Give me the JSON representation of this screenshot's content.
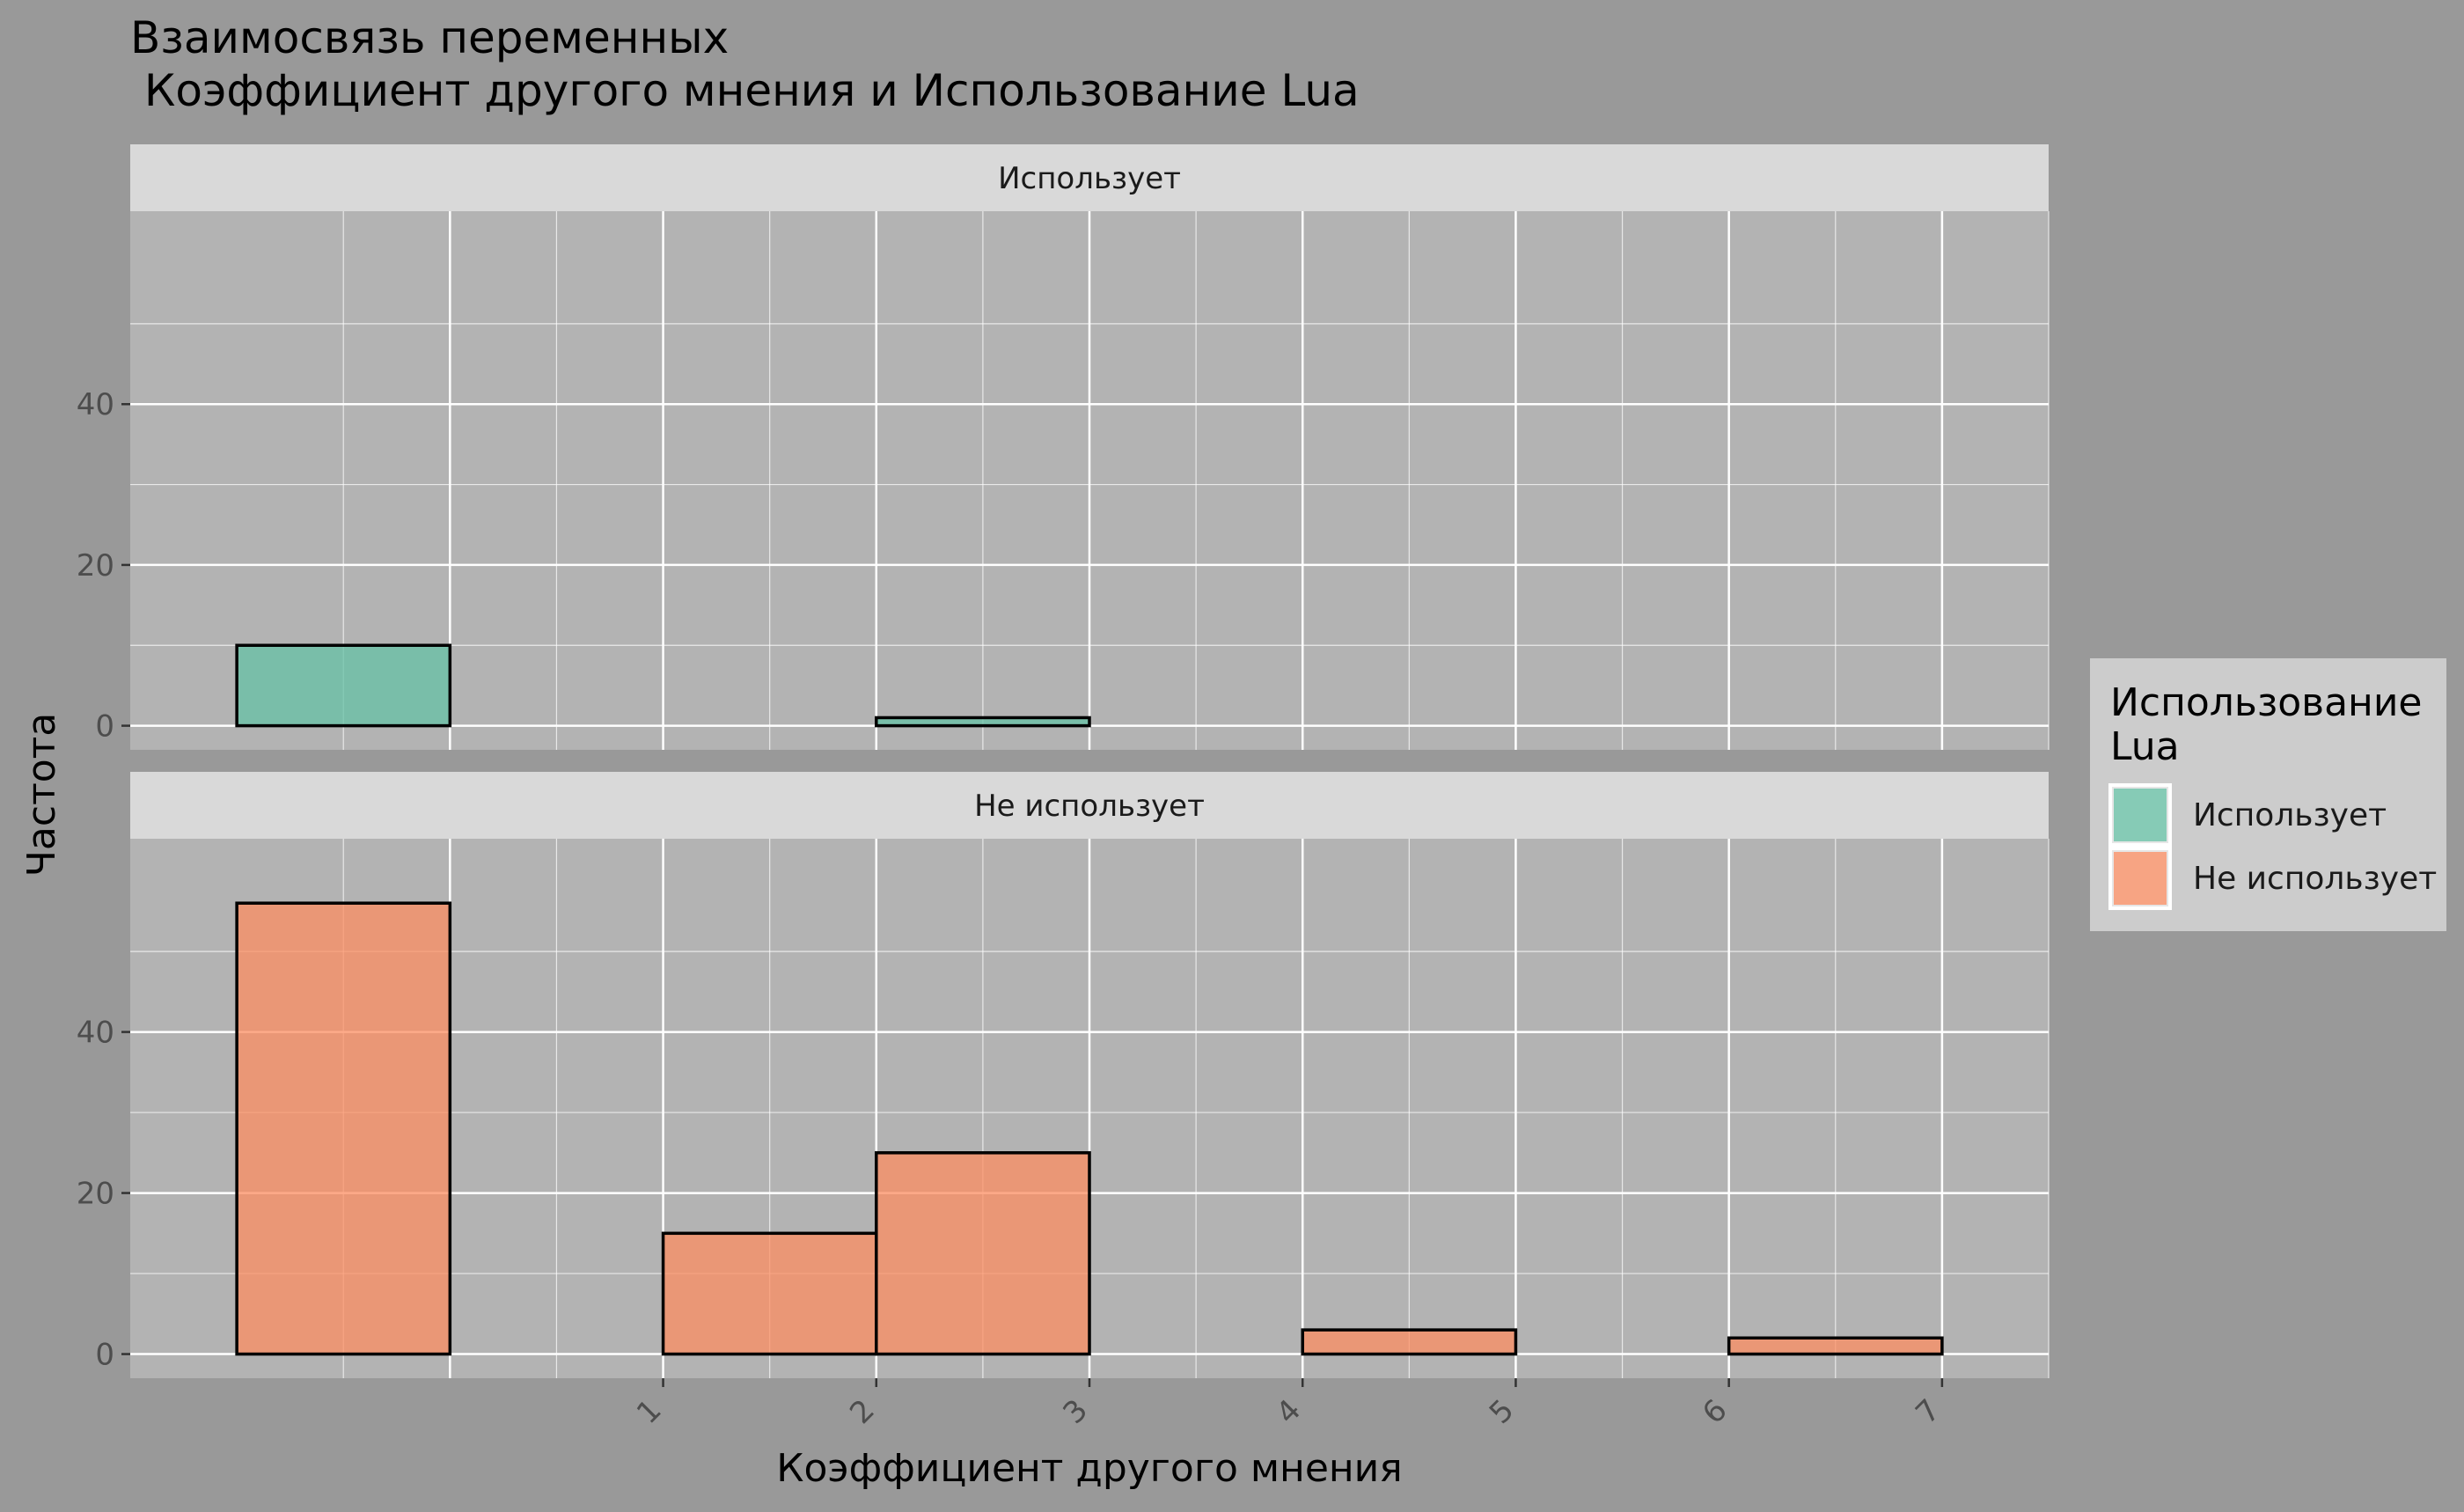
{
  "chart_data": {
    "type": "bar",
    "title": "Взаимосвязь переменных\n Коэффициент другого мнения и Использование Lua",
    "xlabel": "Коэффициент другого мнения",
    "ylabel": "Частота",
    "x_ticks": [
      "1",
      "2",
      "3",
      "4",
      "5",
      "6",
      "7"
    ],
    "xlim": [
      -1.5,
      7.5
    ],
    "ylim": [
      -3,
      64
    ],
    "y_ticks": [
      0,
      20,
      40
    ],
    "bin_width": 1,
    "grid": true,
    "legend_position": "right",
    "legend": {
      "title": "Использование\nLua",
      "items": [
        {
          "label": "Использует",
          "color": "#66C2A5"
        },
        {
          "label": "Не использует",
          "color": "#FC8D62"
        }
      ]
    },
    "panels": [
      {
        "strip": "Использует",
        "color": "#66C2A5",
        "bins": [
          {
            "x0": -1,
            "x1": 0,
            "count": 10
          },
          {
            "x0": 0,
            "x1": 1,
            "count": 0
          },
          {
            "x0": 1,
            "x1": 2,
            "count": 0
          },
          {
            "x0": 2,
            "x1": 3,
            "count": 1
          },
          {
            "x0": 3,
            "x1": 4,
            "count": 0
          },
          {
            "x0": 4,
            "x1": 5,
            "count": 0
          },
          {
            "x0": 5,
            "x1": 6,
            "count": 0
          },
          {
            "x0": 6,
            "x1": 7,
            "count": 0
          }
        ]
      },
      {
        "strip": "Не использует",
        "color": "#FC8D62",
        "bins": [
          {
            "x0": -1,
            "x1": 0,
            "count": 56
          },
          {
            "x0": 0,
            "x1": 1,
            "count": 0
          },
          {
            "x0": 1,
            "x1": 2,
            "count": 15
          },
          {
            "x0": 2,
            "x1": 3,
            "count": 25
          },
          {
            "x0": 3,
            "x1": 4,
            "count": 0
          },
          {
            "x0": 4,
            "x1": 5,
            "count": 3
          },
          {
            "x0": 5,
            "x1": 6,
            "count": 0
          },
          {
            "x0": 6,
            "x1": 7,
            "count": 2
          }
        ]
      }
    ]
  }
}
